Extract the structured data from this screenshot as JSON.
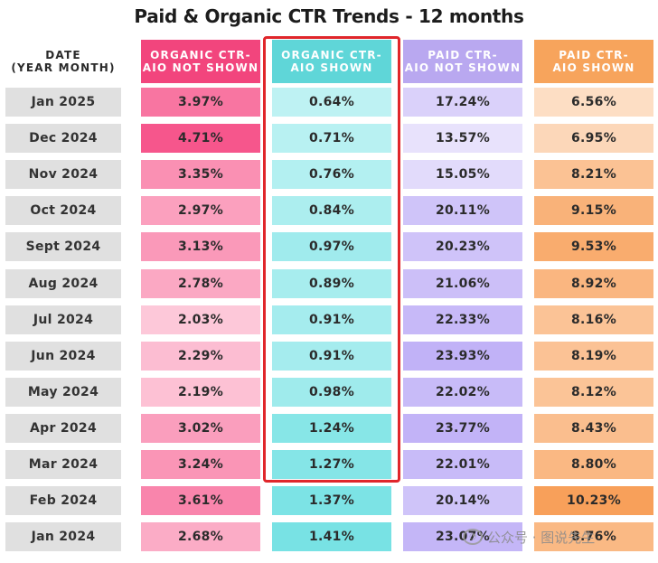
{
  "chart_data": {
    "type": "table",
    "title": "Paid & Organic CTR Trends - 12 months",
    "columns": [
      "DATE\n(YEAR MONTH)",
      "ORGANIC CTR-\nAIO NOT SHOWN",
      "ORGANIC CTR-\nAIO SHOWN",
      "PAID CTR-\nAIO NOT SHOWN",
      "PAID CTR-\nAIO SHOWN"
    ],
    "rows": [
      [
        "Jan 2025",
        "3.97%",
        "0.64%",
        "17.24%",
        "6.56%"
      ],
      [
        "Dec 2024",
        "4.71%",
        "0.71%",
        "13.57%",
        "6.95%"
      ],
      [
        "Nov 2024",
        "3.35%",
        "0.76%",
        "15.05%",
        "8.21%"
      ],
      [
        "Oct 2024",
        "2.97%",
        "0.84%",
        "20.11%",
        "9.15%"
      ],
      [
        "Sept 2024",
        "3.13%",
        "0.97%",
        "20.23%",
        "9.53%"
      ],
      [
        "Aug 2024",
        "2.78%",
        "0.89%",
        "21.06%",
        "8.92%"
      ],
      [
        "Jul 2024",
        "2.03%",
        "0.91%",
        "22.33%",
        "8.16%"
      ],
      [
        "Jun 2024",
        "2.29%",
        "0.91%",
        "23.93%",
        "8.19%"
      ],
      [
        "May 2024",
        "2.19%",
        "0.98%",
        "22.02%",
        "8.12%"
      ],
      [
        "Apr 2024",
        "3.02%",
        "1.24%",
        "23.77%",
        "8.43%"
      ],
      [
        "Mar 2024",
        "3.24%",
        "1.27%",
        "22.01%",
        "8.80%"
      ],
      [
        "Feb 2024",
        "3.61%",
        "1.37%",
        "20.14%",
        "10.23%"
      ],
      [
        "Jan 2024",
        "2.68%",
        "1.41%",
        "23.07%",
        "8.76%"
      ]
    ],
    "highlighted_column": "ORGANIC CTR-\nAIO SHOWN",
    "highlighted_rows": [
      "Jan 2025",
      "Mar 2024"
    ]
  },
  "colors": {
    "organic_not_shown_header": "#f2457d",
    "organic_shown_header": "#5fd6d8",
    "paid_not_shown_header": "#b9a8f0",
    "paid_shown_header": "#f7a45c",
    "highlight_border": "#e0262b",
    "date_cell": "#e0e0e0"
  },
  "watermark": {
    "text": "公众号 · 图说先生"
  }
}
